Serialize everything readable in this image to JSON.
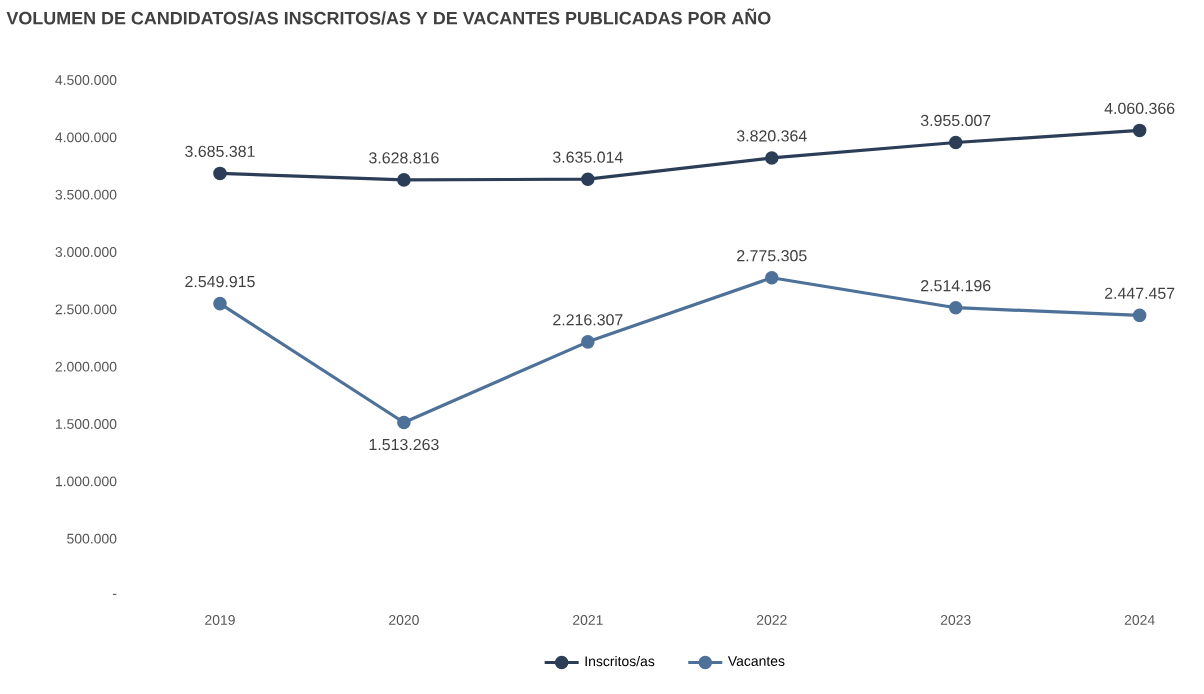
{
  "chart_data": {
    "type": "line",
    "title": "VOLUMEN DE CANDIDATOS/AS INSCRITOS/AS Y DE VACANTES PUBLICADAS POR AÑO",
    "categories": [
      "2019",
      "2020",
      "2021",
      "2022",
      "2023",
      "2024"
    ],
    "series": [
      {
        "name": "Inscritos/as",
        "color": "#2c3e57",
        "values": [
          3685381,
          3628816,
          3635014,
          3820364,
          3955007,
          4060366
        ],
        "value_labels": [
          "3.685.381",
          "3.628.816",
          "3.635.014",
          "3.820.364",
          "3.955.007",
          "4.060.366"
        ]
      },
      {
        "name": "Vacantes",
        "color": "#4d7198",
        "values": [
          2549915,
          1513263,
          2216307,
          2775305,
          2514196,
          2447457
        ],
        "value_labels": [
          "2.549.915",
          "1.513.263",
          "2.216.307",
          "2.775.305",
          "2.514.196",
          "2.447.457"
        ]
      }
    ],
    "ylim": [
      0,
      4500000
    ],
    "yticks": [
      {
        "value": 0,
        "label": "-"
      },
      {
        "value": 500000,
        "label": "500.000"
      },
      {
        "value": 1000000,
        "label": "1.000.000"
      },
      {
        "value": 1500000,
        "label": "1.500.000"
      },
      {
        "value": 2000000,
        "label": "2.000.000"
      },
      {
        "value": 2500000,
        "label": "2.500.000"
      },
      {
        "value": 3000000,
        "label": "3.000.000"
      },
      {
        "value": 3500000,
        "label": "3.500.000"
      },
      {
        "value": 4000000,
        "label": "4.000.000"
      },
      {
        "value": 4500000,
        "label": "4.500.000"
      }
    ],
    "legend": "bottom",
    "marker": "circle",
    "line_style": "solid",
    "grid": false
  }
}
